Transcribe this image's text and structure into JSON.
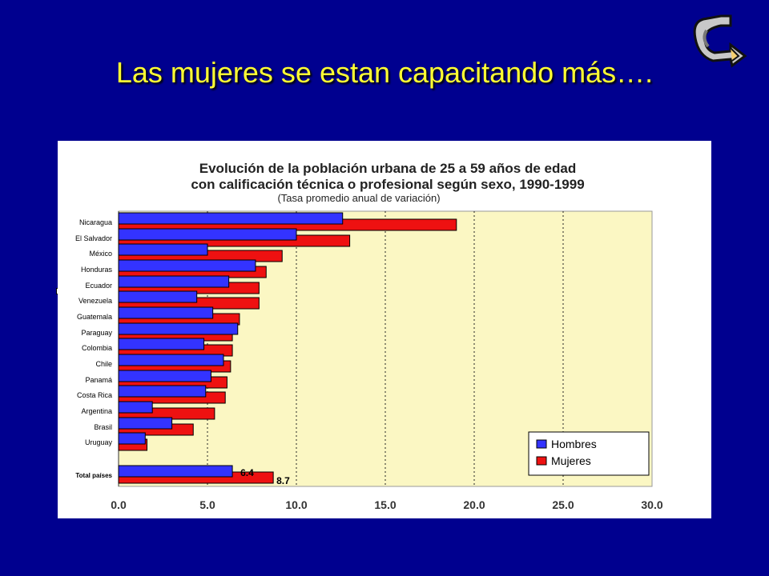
{
  "slide": {
    "title": "Las mujeres se estan capacitando más…."
  },
  "nav": {
    "icon": "curved-arrow-icon"
  },
  "colors": {
    "background": "#00008f",
    "title": "#ffff33",
    "plot_area": "#fbf7c3",
    "hombres": "#3333ff",
    "mujeres": "#ee1111"
  },
  "chart_data": {
    "type": "bar",
    "orientation": "horizontal",
    "title": "Evolución de la población urbana de 25 a 59 años de edad con calificación técnica o profesional según sexo, 1990-1999",
    "title_line1": "Evolución de la población urbana de 25 a 59 años de edad",
    "title_line2": "con calificación técnica o profesional según sexo, 1990-1999",
    "subtitle": "(Tasa promedio anual de variación)",
    "categories": [
      "Nicaragua",
      "El Salvador",
      "México",
      "Honduras",
      "Ecuador",
      "Venezuela",
      "Guatemala",
      "Paraguay",
      "Colombia",
      "Chile",
      "Panamá",
      "Costa Rica",
      "Argentina",
      "Brasil",
      "Uruguay",
      "Total países"
    ],
    "series": [
      {
        "name": "Hombres",
        "values": [
          12.6,
          10.0,
          5.0,
          7.7,
          6.2,
          4.4,
          5.3,
          6.7,
          4.8,
          5.9,
          5.2,
          4.9,
          1.9,
          3.0,
          1.5,
          6.4
        ]
      },
      {
        "name": "Mujeres",
        "values": [
          19.0,
          13.0,
          9.2,
          8.3,
          7.9,
          7.9,
          6.8,
          6.4,
          6.4,
          6.3,
          6.1,
          6.0,
          5.4,
          4.2,
          1.6,
          8.7
        ]
      }
    ],
    "data_labels": {
      "Total países": {
        "Hombres": "6.4",
        "Mujeres": "8.7"
      }
    },
    "x_ticks": [
      "0.0",
      "5.0",
      "10.0",
      "15.0",
      "20.0",
      "25.0",
      "30.0"
    ],
    "xlim": [
      0,
      30
    ],
    "grid": "vertical dashed",
    "legend": "bottom-right"
  }
}
